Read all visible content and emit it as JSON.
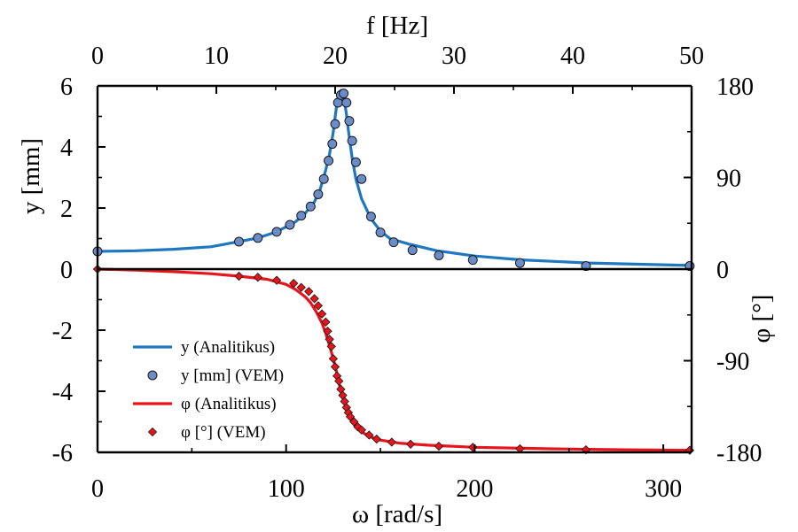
{
  "chart_data": {
    "type": "line",
    "title": "",
    "x_bottom": {
      "label": "ω [rad/s]",
      "lim": [
        0,
        315
      ],
      "ticks": [
        0,
        100,
        200,
        300
      ],
      "tick_labels": [
        "0",
        "100",
        "200",
        "300"
      ]
    },
    "x_top": {
      "label": "f [Hz]",
      "lim": [
        0,
        50
      ],
      "ticks": [
        0,
        10,
        20,
        30,
        40,
        50
      ],
      "tick_labels": [
        "0",
        "10",
        "20",
        "30",
        "40",
        "50"
      ]
    },
    "y_left": {
      "label": "y [mm]",
      "lim": [
        -6,
        6
      ],
      "ticks": [
        -6,
        -4,
        -2,
        0,
        2,
        4,
        6
      ],
      "tick_labels": [
        "-6",
        "-4",
        "-2",
        "0",
        "2",
        "4",
        "6"
      ]
    },
    "y_right": {
      "label": "φ [°]",
      "lim": [
        -180,
        180
      ],
      "ticks": [
        -180,
        -90,
        0,
        90,
        180
      ],
      "tick_labels": [
        "-180",
        "-90",
        "0",
        "90",
        "180"
      ]
    },
    "grid": false,
    "legend_position": "lower-left",
    "series": [
      {
        "name": "y  (Analitikus)",
        "kind": "line",
        "axis": "y_left",
        "color": "#1f77c0",
        "x": [
          0,
          20,
          40,
          60,
          75,
          85,
          95,
          105,
          110,
          115,
          118,
          121,
          123,
          125,
          126,
          127,
          128,
          129,
          130,
          131,
          132,
          133,
          135,
          137,
          140,
          145,
          150,
          155,
          165,
          180,
          200,
          225,
          260,
          315
        ],
        "values": [
          0.58,
          0.6,
          0.65,
          0.73,
          0.9,
          1.02,
          1.22,
          1.55,
          1.82,
          2.2,
          2.6,
          3.25,
          3.75,
          4.5,
          4.98,
          5.45,
          5.75,
          5.85,
          5.78,
          5.48,
          5.05,
          4.55,
          3.65,
          2.95,
          2.3,
          1.65,
          1.25,
          1.0,
          0.82,
          0.6,
          0.43,
          0.3,
          0.2,
          0.12
        ]
      },
      {
        "name": "y [mm] (VEM)",
        "kind": "scatter",
        "marker": "circle",
        "axis": "y_left",
        "color": "#6a8cc8",
        "x": [
          0,
          75,
          85,
          95,
          102,
          108,
          113,
          117,
          120,
          122.5,
          124.5,
          126,
          127.5,
          129,
          130.5,
          132,
          133.5,
          135,
          137,
          140,
          145,
          150,
          157,
          167,
          181,
          199,
          224,
          259,
          314
        ],
        "values": [
          0.58,
          0.9,
          1.02,
          1.22,
          1.45,
          1.75,
          2.05,
          2.45,
          2.95,
          3.55,
          4.1,
          4.75,
          5.45,
          5.7,
          5.75,
          5.45,
          4.85,
          4.2,
          3.5,
          2.95,
          1.72,
          1.2,
          0.88,
          0.62,
          0.45,
          0.3,
          0.2,
          0.1,
          0.1
        ]
      },
      {
        "name": "φ  (Analitikus)",
        "kind": "line",
        "axis": "y_right",
        "color": "#e8141c",
        "x": [
          0,
          20,
          40,
          60,
          75,
          90,
          100,
          105,
          110,
          113,
          116,
          119,
          121,
          123,
          125,
          127,
          128,
          129,
          130,
          131,
          132,
          133,
          135,
          137,
          140,
          145,
          150,
          160,
          175,
          200,
          240,
          280,
          315
        ],
        "values": [
          0,
          -1,
          -2.5,
          -4.5,
          -7,
          -10,
          -15,
          -20,
          -27,
          -33,
          -42,
          -53,
          -63,
          -75,
          -88,
          -103,
          -112,
          -119,
          -126,
          -132,
          -138,
          -143,
          -150,
          -155,
          -160,
          -165,
          -168,
          -171,
          -173,
          -175,
          -176.5,
          -177.5,
          -178
        ]
      },
      {
        "name": "φ [°] (VEM)",
        "kind": "scatter",
        "marker": "diamond",
        "axis": "y_right",
        "color": "#e8141c",
        "x": [
          0,
          75,
          85,
          95,
          104,
          108,
          112,
          115,
          117,
          119,
          121,
          122,
          123,
          124,
          125,
          126,
          127,
          128,
          129,
          130,
          131,
          132,
          133,
          134,
          136,
          138,
          140,
          144,
          148,
          156,
          166,
          181,
          199,
          224,
          259,
          314
        ],
        "values": [
          0,
          -7,
          -8,
          -11,
          -14,
          -18,
          -22,
          -29,
          -36,
          -44,
          -52,
          -61,
          -69,
          -76,
          -88,
          -96,
          -105,
          -110,
          -118,
          -124,
          -130,
          -136,
          -141,
          -145,
          -150,
          -155,
          -158,
          -163,
          -167,
          -170,
          -172,
          -174,
          -175,
          -176.5,
          -177.5,
          -178
        ]
      }
    ],
    "legend": [
      {
        "label": "y  (Analitikus)",
        "symbol": "line",
        "color": "#1f77c0"
      },
      {
        "label": "y [mm] (VEM)",
        "symbol": "circle",
        "color": "#6a8cc8"
      },
      {
        "label": "φ  (Analitikus)",
        "symbol": "line",
        "color": "#e8141c"
      },
      {
        "label": "φ [°] (VEM)",
        "symbol": "diamond",
        "color": "#e8141c"
      }
    ]
  }
}
